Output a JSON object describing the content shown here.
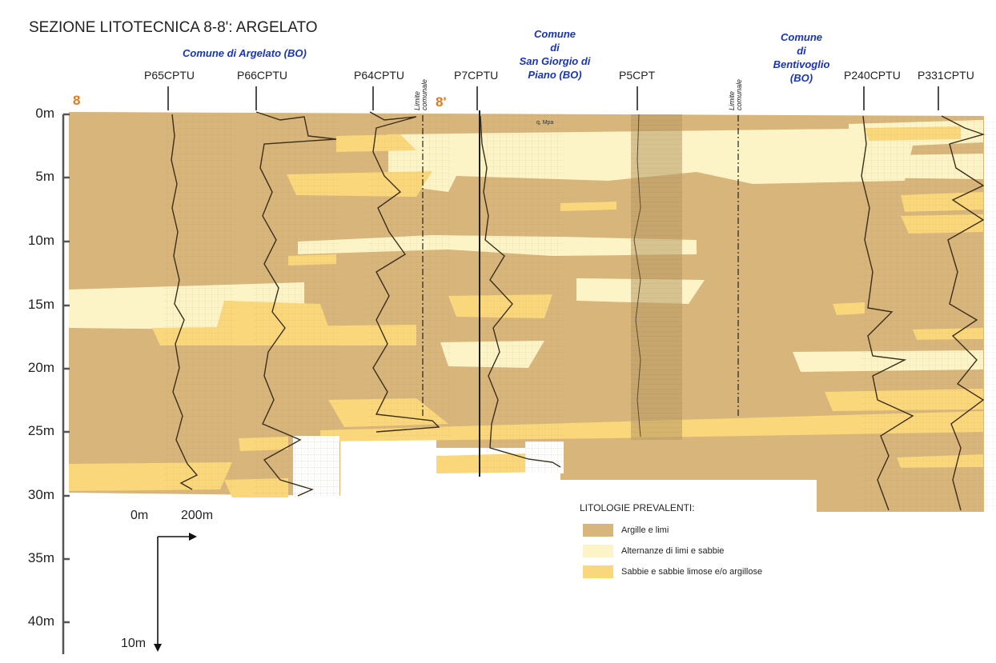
{
  "title": "SEZIONE LITOTECNICA 8-8': ARGELATO",
  "section_markers": {
    "start": "8",
    "end": "8'"
  },
  "communes": [
    {
      "name": "Comune di Argelato (BO)"
    },
    {
      "name": "Comune\ndi\nSan Giorgio di\nPiano (BO)"
    },
    {
      "name": "Comune\ndi\nBentivoglio\n(BO)"
    }
  ],
  "limite_label": "Limite\ncomunale",
  "boreholes": [
    "P65CPTU",
    "P66CPTU",
    "P64CPTU",
    "P7CPTU",
    "P5CPT",
    "P240CPTU",
    "P331CPTU"
  ],
  "depth_axis": [
    "0m",
    "5m",
    "10m",
    "15m",
    "20m",
    "25m",
    "30m",
    "35m",
    "40m"
  ],
  "scale": {
    "h_start": "0m",
    "h_end": "200m",
    "v_end": "10m"
  },
  "log_annotation": "q, Mpa",
  "legend": {
    "title": "LITOLOGIE PREVALENTI:",
    "items": [
      {
        "label": "Argille e limi",
        "color": "#d8b57a"
      },
      {
        "label": "Alternanze di limi e sabbie",
        "color": "#fcf4c6"
      },
      {
        "label": "Sabbie e sabbie limose e/o argillose",
        "color": "#f9d77a"
      }
    ]
  },
  "colors": {
    "clay": "#d8b57a",
    "alternations": "#fcf4c6",
    "sand": "#f9d77a",
    "commune_text": "#1a35b0",
    "marker": "#e07a1e"
  }
}
